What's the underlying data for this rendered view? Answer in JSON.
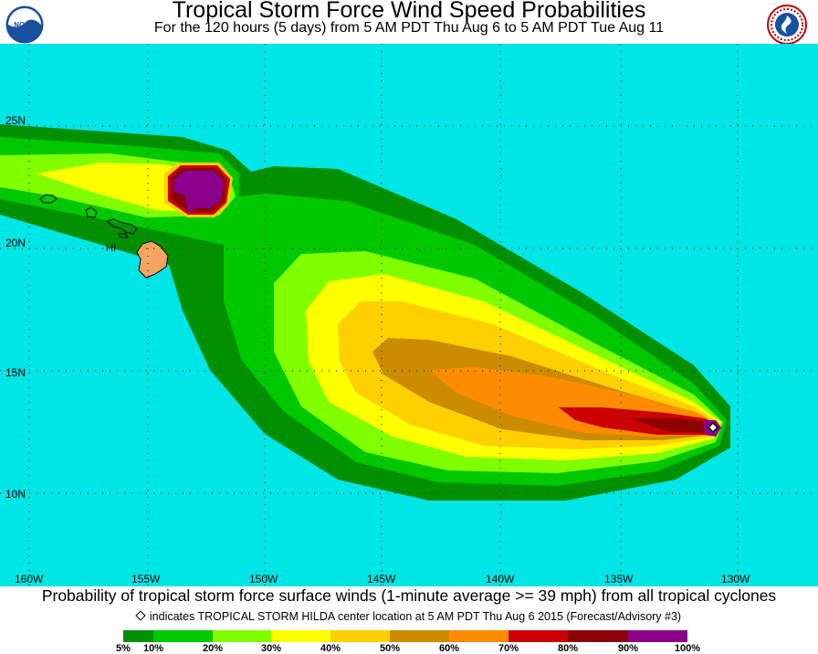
{
  "header": {
    "title": "Tropical Storm Force Wind Speed Probabilities",
    "subtitle": "For the 120 hours (5 days) from 5 AM PDT Thu Aug 6 to 5 AM PDT Tue Aug 11",
    "left_logo": {
      "text": "NOAA",
      "icon": "noaa-logo"
    },
    "right_logo": {
      "text": "NATIONAL WEATHER SERVICE",
      "icon": "nws-logo"
    }
  },
  "map": {
    "ocean_color": "#00e5e5",
    "land_color": "#f4a460",
    "lat_labels": [
      "25N",
      "20N",
      "15N",
      "10N"
    ],
    "lon_labels": [
      "160W",
      "155W",
      "150W",
      "145W",
      "140W",
      "135W",
      "130W"
    ],
    "region_label": "HI",
    "storm_marker": "storm-center-diamond"
  },
  "caption": "Probability of tropical storm force surface winds (1-minute average >= 39 mph) from all tropical cyclones",
  "note": "indicates TROPICAL STORM HILDA center location at 5 AM PDT Thu Aug 6 2015 (Forecast/Advisory #3)",
  "legend": {
    "colors": [
      "#009000",
      "#00c800",
      "#80ff00",
      "#ffff00",
      "#ffd000",
      "#cc8c00",
      "#ff8c00",
      "#cc0000",
      "#8b0000",
      "#8b008b"
    ],
    "labels": [
      "5%",
      "10%",
      "20%",
      "30%",
      "40%",
      "50%",
      "60%",
      "70%",
      "80%",
      "90%",
      "100%"
    ]
  }
}
